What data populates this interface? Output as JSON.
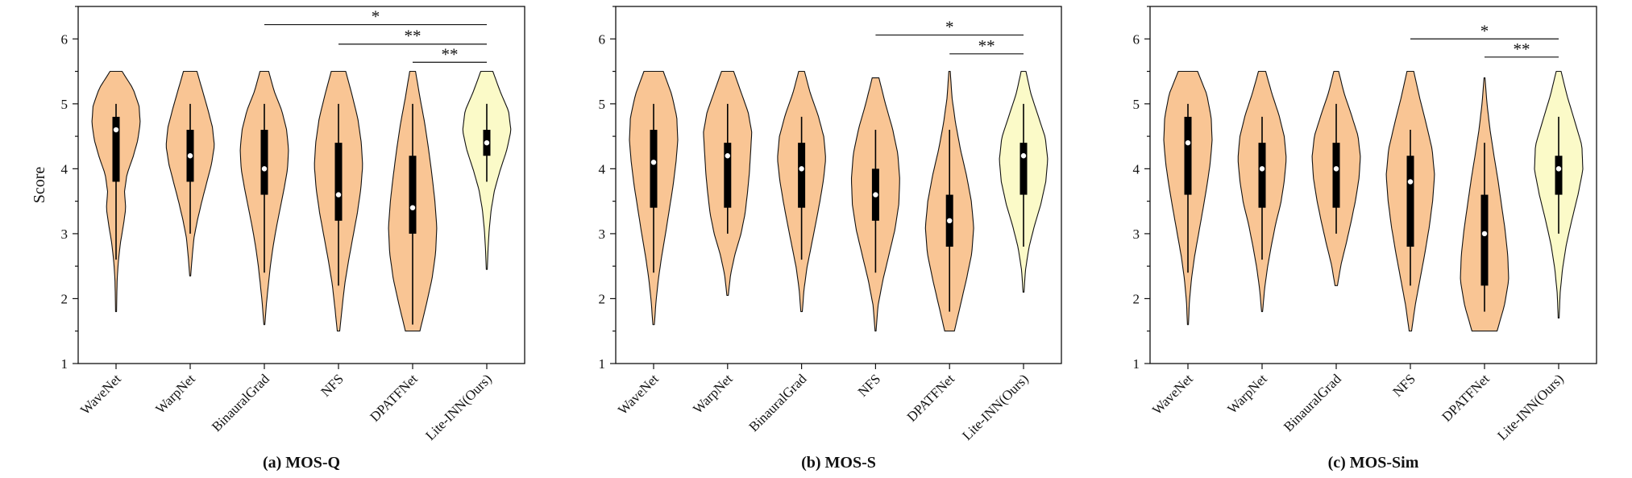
{
  "colors": {
    "violin_baseline": "#f9c594",
    "violin_ours": "#fbfac8",
    "outline": "#111111",
    "box": "#000000",
    "median": "#ffffff"
  },
  "chart_data": [
    {
      "type": "violin",
      "title": "(a) MOS-Q",
      "ylabel": "Score",
      "xlabel": "",
      "ylim": [
        1,
        6.5
      ],
      "yticks": [
        1,
        2,
        3,
        4,
        5,
        6
      ],
      "categories": [
        "WaveNet",
        "WarpNet",
        "BinauralGrad",
        "NFS",
        "DPATFNet",
        "Lite-INN(Ours)"
      ],
      "series": [
        {
          "name": "WaveNet",
          "min": 1.8,
          "max": 5.5,
          "q1": 3.8,
          "median": 4.6,
          "q3": 4.8,
          "whisker_low": 2.6,
          "whisker_high": 5.0,
          "density": [
            0.02,
            0.03,
            0.05,
            0.1,
            0.18,
            0.3,
            0.4,
            0.35,
            0.45,
            0.7,
            0.9,
            1.0,
            0.95,
            0.7,
            0.25
          ]
        },
        {
          "name": "WarpNet",
          "min": 2.35,
          "max": 5.5,
          "q1": 3.8,
          "median": 4.2,
          "q3": 4.6,
          "whisker_low": 3.0,
          "whisker_high": 5.0,
          "density": [
            0.02,
            0.08,
            0.15,
            0.3,
            0.48,
            0.68,
            0.88,
            1.0,
            0.92,
            0.72,
            0.5,
            0.28
          ]
        },
        {
          "name": "BinauralGrad",
          "min": 1.6,
          "max": 5.5,
          "q1": 3.6,
          "median": 4.0,
          "q3": 4.6,
          "whisker_low": 2.4,
          "whisker_high": 5.0,
          "density": [
            0.02,
            0.08,
            0.16,
            0.25,
            0.36,
            0.5,
            0.66,
            0.82,
            0.96,
            1.0,
            0.92,
            0.72,
            0.4,
            0.18
          ]
        },
        {
          "name": "NFS",
          "min": 1.5,
          "max": 5.5,
          "q1": 3.2,
          "median": 3.6,
          "q3": 4.4,
          "whisker_low": 2.2,
          "whisker_high": 5.0,
          "density": [
            0.05,
            0.15,
            0.26,
            0.42,
            0.6,
            0.78,
            0.92,
            1.0,
            0.94,
            0.8,
            0.56,
            0.3
          ]
        },
        {
          "name": "DPATFNet",
          "min": 1.5,
          "max": 5.5,
          "q1": 3.0,
          "median": 3.4,
          "q3": 4.2,
          "whisker_low": 1.6,
          "whisker_high": 5.0,
          "density": [
            0.3,
            0.56,
            0.8,
            0.95,
            1.0,
            0.92,
            0.8,
            0.66,
            0.5,
            0.3,
            0.12
          ]
        },
        {
          "name": "Lite-INN(Ours)",
          "min": 2.45,
          "max": 5.5,
          "q1": 4.2,
          "median": 4.4,
          "q3": 4.6,
          "whisker_low": 3.8,
          "whisker_high": 5.0,
          "density": [
            0.02,
            0.05,
            0.1,
            0.18,
            0.32,
            0.55,
            0.82,
            1.0,
            0.9,
            0.55,
            0.25
          ]
        }
      ],
      "annotations": [
        {
          "from": "BinauralGrad",
          "to": "Lite-INN(Ours)",
          "y": 6.22,
          "label": "*"
        },
        {
          "from": "NFS",
          "to": "Lite-INN(Ours)",
          "y": 5.92,
          "label": "**"
        },
        {
          "from": "DPATFNet",
          "to": "Lite-INN(Ours)",
          "y": 5.64,
          "label": "**"
        }
      ]
    },
    {
      "type": "violin",
      "title": "(b) MOS-S",
      "ylabel": "",
      "xlabel": "",
      "ylim": [
        1,
        6.5
      ],
      "yticks": [
        1,
        2,
        3,
        4,
        5,
        6
      ],
      "categories": [
        "WaveNet",
        "WarpNet",
        "BinauralGrad",
        "NFS",
        "DPATFNet",
        "Lite-INN(Ours)"
      ],
      "series": [
        {
          "name": "WaveNet",
          "min": 1.6,
          "max": 5.5,
          "q1": 3.4,
          "median": 4.1,
          "q3": 4.6,
          "whisker_low": 2.4,
          "whisker_high": 5.0,
          "density": [
            0.03,
            0.1,
            0.2,
            0.34,
            0.5,
            0.65,
            0.8,
            0.92,
            1.0,
            0.96,
            0.75,
            0.4
          ]
        },
        {
          "name": "WarpNet",
          "min": 2.05,
          "max": 5.5,
          "q1": 3.4,
          "median": 4.2,
          "q3": 4.4,
          "whisker_low": 3.0,
          "whisker_high": 5.0,
          "density": [
            0.03,
            0.12,
            0.3,
            0.55,
            0.72,
            0.82,
            0.9,
            0.95,
            1.0,
            0.85,
            0.55,
            0.25
          ]
        },
        {
          "name": "BinauralGrad",
          "min": 1.8,
          "max": 5.5,
          "q1": 3.4,
          "median": 4.0,
          "q3": 4.4,
          "whisker_low": 2.6,
          "whisker_high": 4.8,
          "density": [
            0.03,
            0.1,
            0.22,
            0.4,
            0.58,
            0.75,
            0.9,
            1.0,
            0.92,
            0.68,
            0.36,
            0.12
          ]
        },
        {
          "name": "NFS",
          "min": 1.5,
          "max": 5.4,
          "q1": 3.2,
          "median": 3.6,
          "q3": 4.0,
          "whisker_low": 2.4,
          "whisker_high": 4.6,
          "density": [
            0.02,
            0.1,
            0.3,
            0.55,
            0.8,
            0.96,
            1.0,
            0.92,
            0.7,
            0.4,
            0.14
          ]
        },
        {
          "name": "DPATFNet",
          "min": 1.5,
          "max": 5.5,
          "q1": 2.8,
          "median": 3.2,
          "q3": 3.6,
          "whisker_low": 1.8,
          "whisker_high": 4.6,
          "density": [
            0.2,
            0.45,
            0.7,
            0.92,
            1.0,
            0.9,
            0.7,
            0.45,
            0.25,
            0.1,
            0.03
          ]
        },
        {
          "name": "Lite-INN(Ours)",
          "min": 2.1,
          "max": 5.5,
          "q1": 3.6,
          "median": 4.2,
          "q3": 4.4,
          "whisker_low": 2.8,
          "whisker_high": 5.0,
          "density": [
            0.02,
            0.08,
            0.22,
            0.45,
            0.72,
            0.92,
            1.0,
            0.9,
            0.6,
            0.3,
            0.1
          ]
        }
      ],
      "annotations": [
        {
          "from": "NFS",
          "to": "Lite-INN(Ours)",
          "y": 6.06,
          "label": "*"
        },
        {
          "from": "DPATFNet",
          "to": "Lite-INN(Ours)",
          "y": 5.77,
          "label": "**"
        }
      ]
    },
    {
      "type": "violin",
      "title": "(c) MOS-Sim",
      "ylabel": "",
      "xlabel": "",
      "ylim": [
        1,
        6.5
      ],
      "yticks": [
        1,
        2,
        3,
        4,
        5,
        6
      ],
      "categories": [
        "WaveNet",
        "WarpNet",
        "BinauralGrad",
        "NFS",
        "DPATFNet",
        "Lite-INN(Ours)"
      ],
      "series": [
        {
          "name": "WaveNet",
          "min": 1.6,
          "max": 5.5,
          "q1": 3.6,
          "median": 4.4,
          "q3": 4.8,
          "whisker_low": 2.4,
          "whisker_high": 5.0,
          "density": [
            0.02,
            0.06,
            0.15,
            0.28,
            0.45,
            0.62,
            0.78,
            0.92,
            1.0,
            0.96,
            0.78,
            0.4
          ]
        },
        {
          "name": "WarpNet",
          "min": 1.8,
          "max": 5.5,
          "q1": 3.4,
          "median": 4.0,
          "q3": 4.4,
          "whisker_low": 2.6,
          "whisker_high": 4.8,
          "density": [
            0.02,
            0.1,
            0.22,
            0.38,
            0.56,
            0.78,
            0.92,
            1.0,
            0.92,
            0.7,
            0.4,
            0.15
          ]
        },
        {
          "name": "BinauralGrad",
          "min": 2.2,
          "max": 5.5,
          "q1": 3.4,
          "median": 4.0,
          "q3": 4.4,
          "whisker_low": 3.0,
          "whisker_high": 5.0,
          "density": [
            0.05,
            0.2,
            0.42,
            0.62,
            0.8,
            0.94,
            1.0,
            0.9,
            0.62,
            0.32,
            0.1
          ]
        },
        {
          "name": "NFS",
          "min": 1.5,
          "max": 5.5,
          "q1": 2.8,
          "median": 3.8,
          "q3": 4.2,
          "whisker_low": 2.2,
          "whisker_high": 4.6,
          "density": [
            0.05,
            0.2,
            0.4,
            0.6,
            0.78,
            0.92,
            1.0,
            0.9,
            0.65,
            0.38,
            0.14
          ]
        },
        {
          "name": "DPATFNet",
          "min": 1.5,
          "max": 5.4,
          "q1": 2.2,
          "median": 3.0,
          "q3": 3.6,
          "whisker_low": 1.8,
          "whisker_high": 4.4,
          "density": [
            0.52,
            0.82,
            1.0,
            0.96,
            0.85,
            0.7,
            0.55,
            0.38,
            0.22,
            0.1,
            0.02
          ]
        },
        {
          "name": "Lite-INN(Ours)",
          "min": 1.7,
          "max": 5.5,
          "q1": 3.6,
          "median": 4.0,
          "q3": 4.2,
          "whisker_low": 3.0,
          "whisker_high": 4.8,
          "density": [
            0.02,
            0.06,
            0.16,
            0.32,
            0.55,
            0.8,
            1.0,
            0.96,
            0.66,
            0.35,
            0.1
          ]
        }
      ],
      "annotations": [
        {
          "from": "NFS",
          "to": "Lite-INN(Ours)",
          "y": 6.0,
          "label": "*"
        },
        {
          "from": "DPATFNet",
          "to": "Lite-INN(Ours)",
          "y": 5.72,
          "label": "**"
        }
      ]
    }
  ]
}
